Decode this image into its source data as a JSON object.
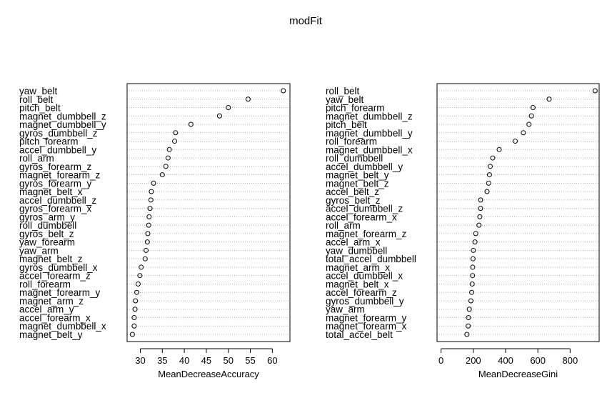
{
  "title": "modFit",
  "chart_data": [
    {
      "type": "scatter",
      "xlabel": "MeanDecreaseAccuracy",
      "xlim": [
        27,
        64
      ],
      "xticks": [
        30,
        35,
        40,
        45,
        50,
        55,
        60
      ],
      "grid": "horizontal-dotted",
      "categories": [
        "yaw_belt",
        "roll_belt",
        "pitch_belt",
        "magnet_dumbbell_z",
        "magnet_dumbbell_y",
        "gyros_dumbbell_z",
        "pitch_forearm",
        "accel_dumbbell_y",
        "roll_arm",
        "gyros_forearm_z",
        "magnet_forearm_z",
        "gyros_forearm_y",
        "magnet_belt_x",
        "accel_dumbbell_z",
        "gyros_forearm_x",
        "gyros_arm_y",
        "roll_dumbbell",
        "gyros_belt_z",
        "yaw_forearm",
        "yaw_arm",
        "magnet_belt_z",
        "gyros_dumbbell_x",
        "accel_forearm_z",
        "roll_forearm",
        "magnet_forearm_y",
        "magnet_arm_z",
        "accel_arm_y",
        "accel_forearm_x",
        "magnet_dumbbell_x",
        "magnet_belt_y"
      ],
      "values": [
        62.5,
        54.5,
        50.0,
        48.0,
        41.5,
        38.0,
        37.8,
        36.6,
        36.3,
        35.8,
        35.0,
        33.0,
        32.5,
        32.4,
        32.2,
        32.0,
        31.9,
        31.7,
        31.6,
        31.3,
        31.1,
        30.2,
        29.9,
        29.5,
        29.2,
        28.9,
        28.8,
        28.6,
        28.6,
        28.2
      ]
    },
    {
      "type": "scatter",
      "xlabel": "MeanDecreaseGini",
      "xlim": [
        -25,
        980
      ],
      "xticks": [
        0,
        200,
        400,
        600,
        800
      ],
      "grid": "horizontal-dotted",
      "categories": [
        "roll_belt",
        "yaw_belt",
        "pitch_forearm",
        "magnet_dumbbell_z",
        "pitch_belt",
        "magnet_dumbbell_y",
        "roll_forearm",
        "magnet_dumbbell_x",
        "roll_dumbbell",
        "accel_dumbbell_y",
        "magnet_belt_y",
        "magnet_belt_z",
        "accel_belt_z",
        "gyros_belt_z",
        "accel_dumbbell_z",
        "accel_forearm_x",
        "roll_arm",
        "magnet_forearm_z",
        "accel_arm_x",
        "yaw_dumbbell",
        "total_accel_dumbbell",
        "magnet_arm_x",
        "accel_dumbbell_x",
        "magnet_belt_x",
        "accel_forearm_z",
        "gyros_dumbbell_y",
        "yaw_arm",
        "magnet_forearm_y",
        "magnet_forearm_x",
        "total_accel_belt"
      ],
      "values": [
        955,
        670,
        570,
        560,
        545,
        510,
        460,
        360,
        320,
        305,
        300,
        295,
        285,
        245,
        245,
        240,
        235,
        215,
        210,
        200,
        198,
        196,
        195,
        193,
        190,
        185,
        175,
        170,
        168,
        160
      ]
    }
  ]
}
